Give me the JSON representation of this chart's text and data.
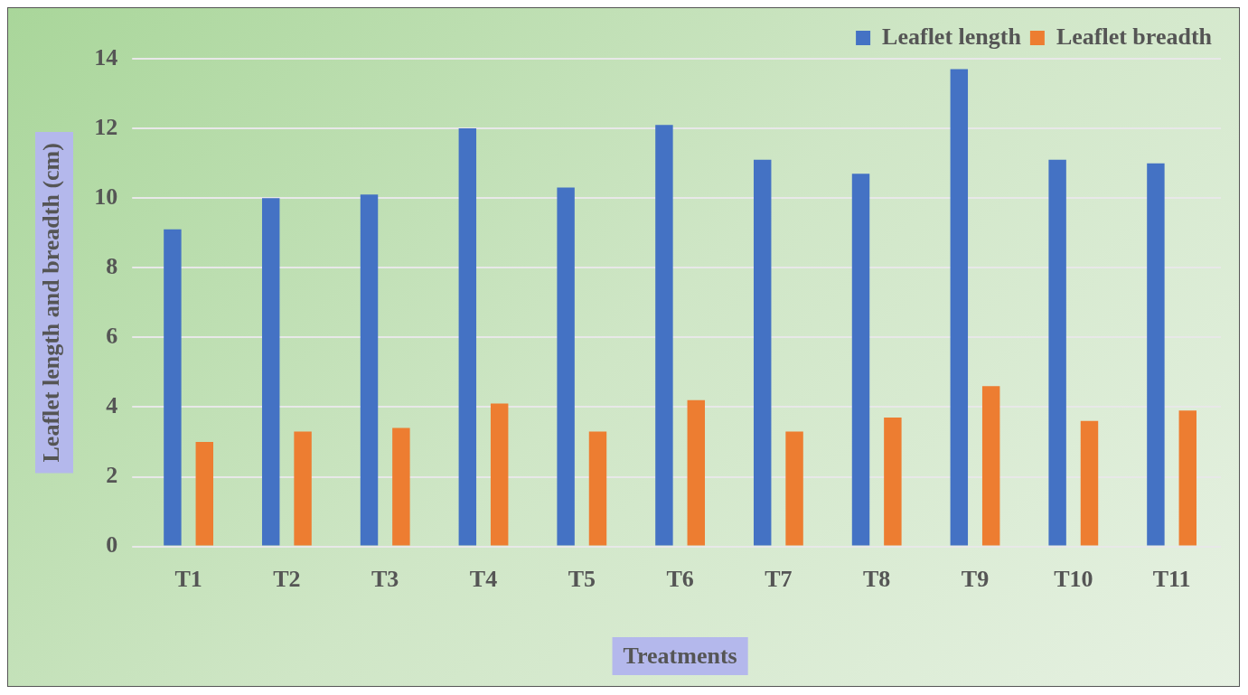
{
  "chart_data": {
    "type": "bar",
    "xlabel": "Treatments",
    "ylabel": "Leaflet length and breadth (cm)",
    "categories": [
      "T1",
      "T2",
      "T3",
      "T4",
      "T5",
      "T6",
      "T7",
      "T8",
      "T9",
      "T10",
      "T11"
    ],
    "series": [
      {
        "name": "Leaflet length",
        "color": "#4472c4",
        "values": [
          9.1,
          10.0,
          10.1,
          12.0,
          10.3,
          12.1,
          11.1,
          10.7,
          13.7,
          11.1,
          11.0
        ]
      },
      {
        "name": "Leaflet breadth",
        "color": "#ed7d31",
        "values": [
          3.0,
          3.3,
          3.4,
          4.1,
          3.3,
          4.2,
          3.3,
          3.7,
          4.6,
          3.6,
          3.9
        ]
      }
    ],
    "ylim": [
      0,
      14
    ],
    "yticks": [
      0,
      2,
      4,
      6,
      8,
      10,
      12,
      14
    ],
    "grid": "y",
    "legend": "top right"
  }
}
